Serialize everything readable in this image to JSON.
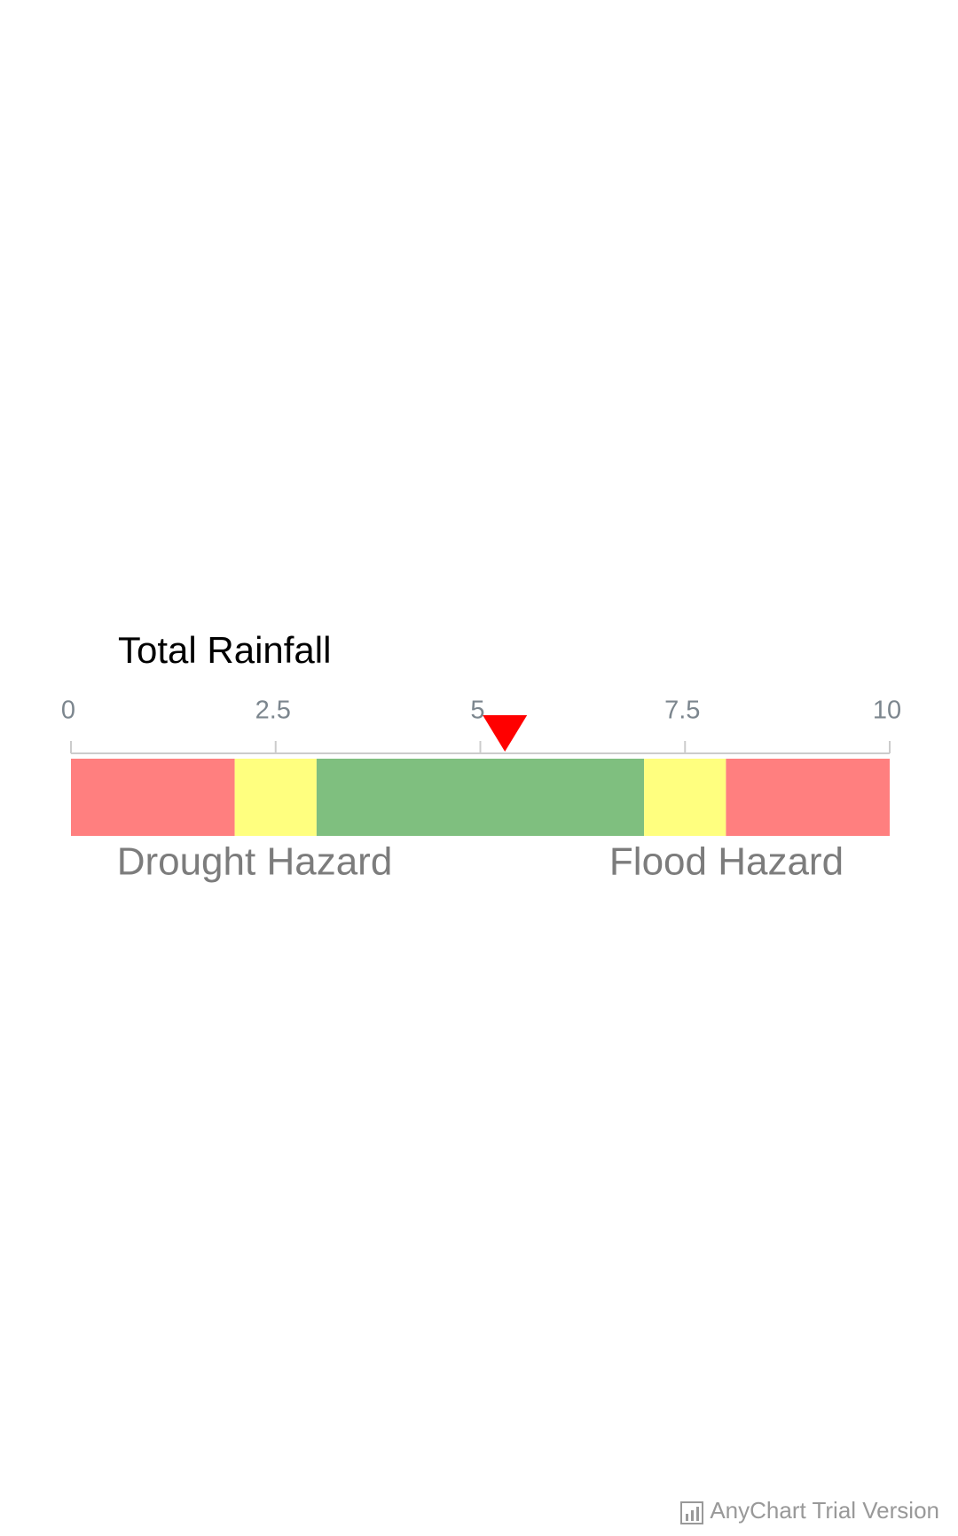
{
  "chart_data": {
    "type": "linear-gauge",
    "title": "Total Rainfall",
    "xlim": [
      0,
      10
    ],
    "xticks": [
      0,
      2.5,
      5,
      7.5,
      10
    ],
    "ranges": [
      {
        "from": 0,
        "to": 2,
        "color": "#ff7f7f"
      },
      {
        "from": 2,
        "to": 3,
        "color": "#ffff7f"
      },
      {
        "from": 3,
        "to": 7,
        "color": "#7fbf7f"
      },
      {
        "from": 7,
        "to": 8,
        "color": "#ffff7f"
      },
      {
        "from": 8,
        "to": 10,
        "color": "#ff7f7f"
      }
    ],
    "marker": {
      "value": 5.3,
      "color": "#ff0000"
    },
    "annotations": [
      "Drought Hazard",
      "Flood Hazard"
    ]
  },
  "watermark": "AnyChart Trial Version"
}
